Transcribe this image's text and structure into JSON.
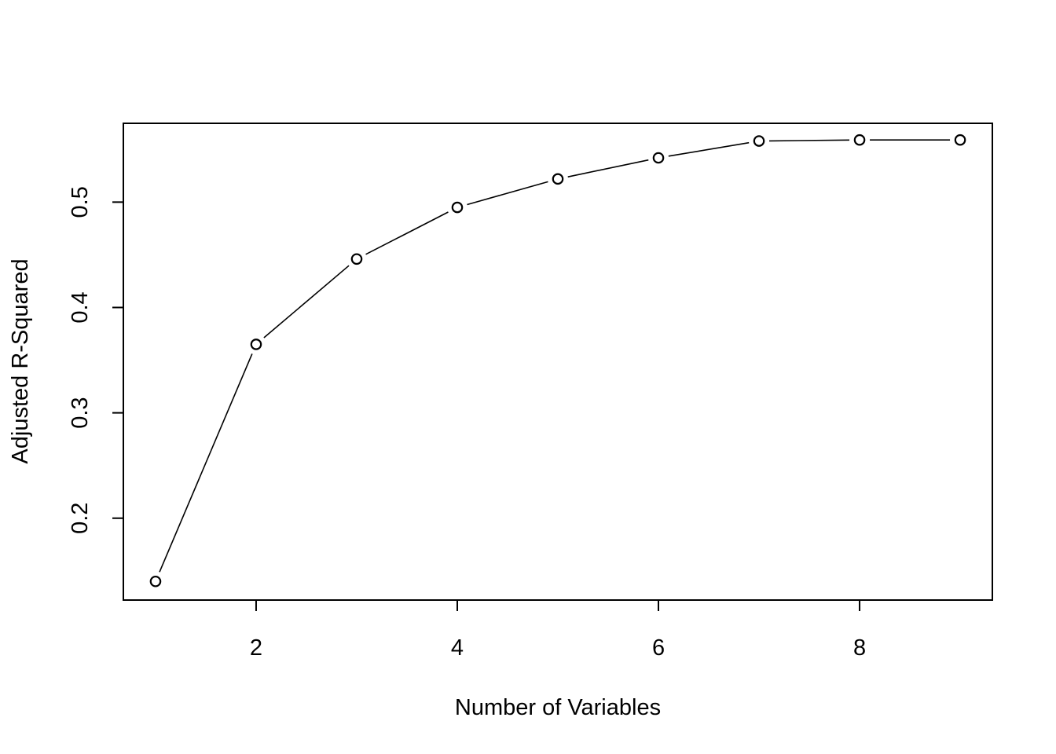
{
  "chart_data": {
    "type": "line",
    "title": "",
    "xlabel": "Number of Variables",
    "ylabel": "Adjusted R-Squared",
    "x": [
      1,
      2,
      3,
      4,
      5,
      6,
      7,
      8,
      9
    ],
    "series": [
      {
        "values": [
          0.14,
          0.365,
          0.446,
          0.495,
          0.522,
          0.542,
          0.558,
          0.559,
          0.559
        ]
      }
    ],
    "xlim": [
      0.68,
      9.32
    ],
    "ylim": [
      0.1223,
      0.5748
    ],
    "x_ticks": [
      2,
      4,
      6,
      8
    ],
    "x_tick_labels": [
      "2",
      "4",
      "6",
      "8"
    ],
    "y_ticks": [
      0.2,
      0.3,
      0.4,
      0.5
    ],
    "y_tick_labels": [
      "0.2",
      "0.3",
      "0.4",
      "0.5"
    ],
    "grid": false,
    "legend": "none",
    "marker": "open-circle",
    "colors": {
      "line": "#000000",
      "marker": "#000000",
      "background": "#ffffff"
    }
  }
}
